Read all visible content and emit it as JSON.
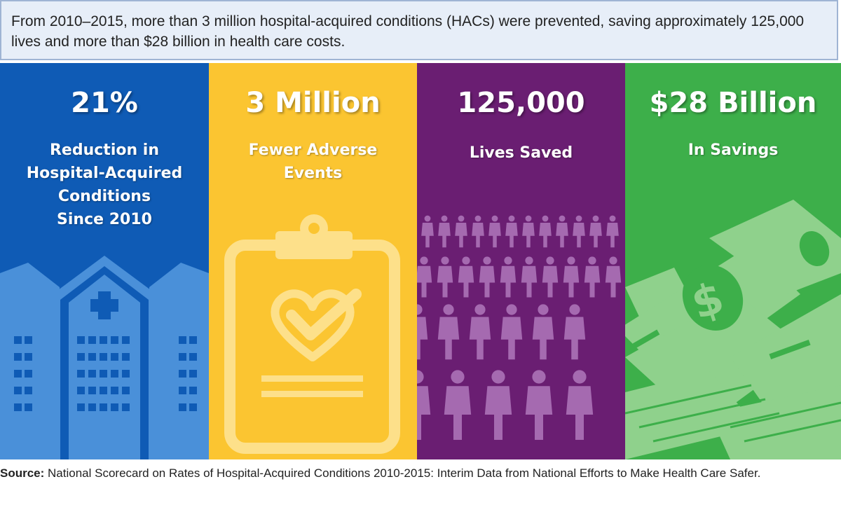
{
  "intro": "From 2010–2015, more than 3 million hospital-acquired conditions (HACs) were prevented, saving approximately 125,000 lives and more than $28 billion in health care costs.",
  "panels": [
    {
      "value": "21%",
      "label_lines": [
        "Reduction in",
        "Hospital-Acquired",
        "Conditions",
        "Since 2010"
      ],
      "icon": "hospital-icon",
      "color": "#0f5bb5"
    },
    {
      "value": "3 Million",
      "label_lines": [
        "Fewer Adverse",
        "Events"
      ],
      "icon": "clipboard-heart-check-icon",
      "color": "#fbc531"
    },
    {
      "value": "125,000",
      "label_lines": [
        "Lives Saved"
      ],
      "icon": "people-icon",
      "color": "#6a1e72"
    },
    {
      "value": "$28 Billion",
      "label_lines": [
        "In Savings"
      ],
      "icon": "money-icon",
      "color": "#3daf4a"
    }
  ],
  "source": {
    "label": "Source:",
    "text": "National Scorecard on Rates of Hospital-Acquired Conditions 2010-2015: Interim Data from National Efforts to Make Health Care Safer."
  }
}
